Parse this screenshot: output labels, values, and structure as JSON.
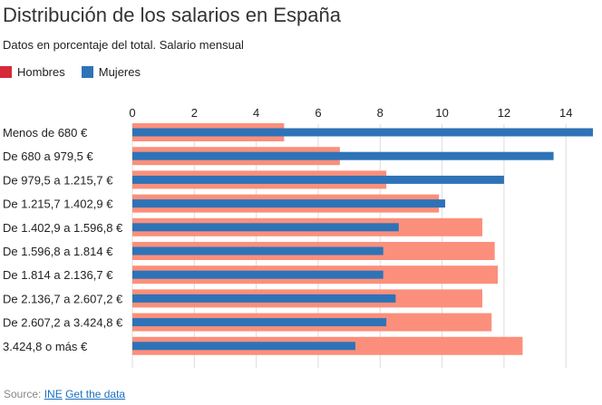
{
  "colors": {
    "hombres_legend": "#d62a3a",
    "hombres_bar": "#fb8f7b",
    "mujeres": "#2e73b7",
    "grid": "#dcdcdc"
  },
  "source": {
    "prefix": "Source:",
    "link_ine": "INE",
    "link_data": "Get the data"
  },
  "chart_data": {
    "type": "bar",
    "orientation": "horizontal",
    "title": "Distribución de los salarios en España",
    "subtitle": "Datos en porcentaje del total. Salario mensual",
    "legend": [
      "Hombres",
      "Mujeres"
    ],
    "x_ticks": [
      "0",
      "2",
      "4",
      "6",
      "8",
      "10",
      "12",
      "14"
    ],
    "xlim": [
      0,
      14.9
    ],
    "grid": true,
    "categories": [
      "Menos de 680 €",
      "De 680 a 979,5 €",
      "De 979,5 a 1.215,7 €",
      "De 1.215,7 1.402,9 €",
      "De 1.402,9 a 1.596,8 €",
      "De 1.596,8 a 1.814 €",
      "De 1.814 a 2.136,7 €",
      "De 2.136,7 a 2.607,2 €",
      "De 2.607,2 a 3.424,8 €",
      "3.424,8 o más €"
    ],
    "series": [
      {
        "name": "Hombres",
        "values": [
          4.9,
          6.7,
          8.2,
          9.9,
          11.3,
          11.7,
          11.8,
          11.3,
          11.6,
          12.6
        ]
      },
      {
        "name": "Mujeres",
        "values": [
          15.6,
          13.6,
          12.0,
          10.1,
          8.6,
          8.1,
          8.1,
          8.5,
          8.2,
          7.2
        ]
      }
    ]
  }
}
